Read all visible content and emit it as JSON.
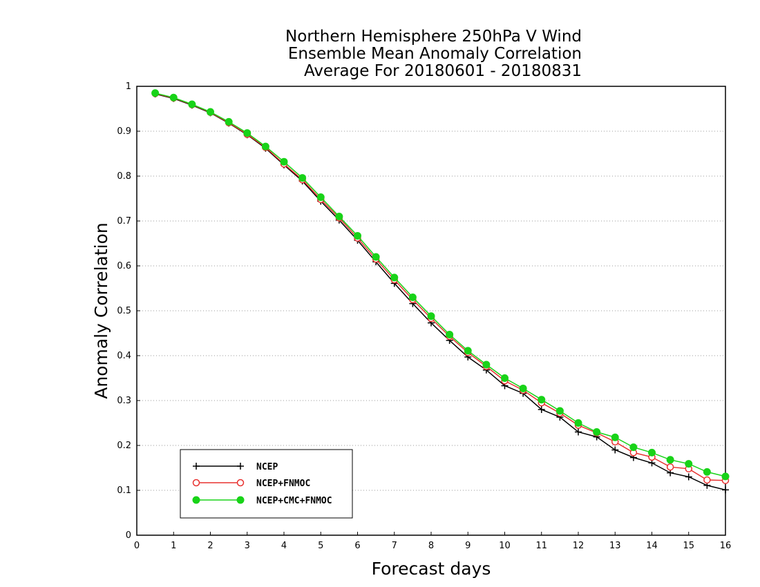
{
  "chart_data": {
    "type": "line",
    "title_lines": [
      "Northern Hemisphere 250hPa V Wind",
      "Ensemble Mean Anomaly Correlation",
      "Average For 20180601 - 20180831"
    ],
    "xlabel": "Forecast days",
    "ylabel": "Anomaly Correlation",
    "xlim": [
      0,
      16
    ],
    "ylim": [
      0,
      1
    ],
    "xticks": [
      "0",
      "1",
      "2",
      "3",
      "4",
      "5",
      "6",
      "7",
      "8",
      "9",
      "10",
      "11",
      "12",
      "13",
      "14",
      "15",
      "16"
    ],
    "yticks": [
      "0",
      "0.1",
      "0.2",
      "0.3",
      "0.4",
      "0.5",
      "0.6",
      "0.7",
      "0.8",
      "0.9",
      "1"
    ],
    "grid": "horizontal dotted",
    "legend_position": "bottom-left",
    "x": [
      0.5,
      1,
      1.5,
      2,
      2.5,
      3,
      3.5,
      4,
      4.5,
      5,
      5.5,
      6,
      6.5,
      7,
      7.5,
      8,
      8.5,
      9,
      9.5,
      10,
      10.5,
      11,
      11.5,
      12,
      12.5,
      13,
      13.5,
      14,
      14.5,
      15,
      15.5,
      16
    ],
    "series": [
      {
        "name": "NCEP",
        "color": "#000000",
        "marker": "plus",
        "values": [
          0.983,
          0.973,
          0.958,
          0.941,
          0.918,
          0.892,
          0.862,
          0.825,
          0.789,
          0.744,
          0.702,
          0.657,
          0.609,
          0.561,
          0.516,
          0.473,
          0.434,
          0.397,
          0.368,
          0.333,
          0.316,
          0.28,
          0.263,
          0.23,
          0.219,
          0.19,
          0.173,
          0.161,
          0.139,
          0.13,
          0.111,
          0.101
        ]
      },
      {
        "name": "NCEP+FNMOC",
        "color": "#e8312f",
        "marker": "open-circle",
        "values": [
          0.984,
          0.974,
          0.959,
          0.942,
          0.919,
          0.893,
          0.864,
          0.827,
          0.792,
          0.748,
          0.707,
          0.662,
          0.615,
          0.569,
          0.525,
          0.483,
          0.443,
          0.407,
          0.376,
          0.344,
          0.323,
          0.295,
          0.272,
          0.245,
          0.228,
          0.208,
          0.184,
          0.174,
          0.152,
          0.148,
          0.123,
          0.122
        ]
      },
      {
        "name": "NCEP+CMC+FNMOC",
        "color": "#18d318",
        "marker": "filled-circle",
        "values": [
          0.985,
          0.975,
          0.96,
          0.943,
          0.921,
          0.896,
          0.866,
          0.832,
          0.796,
          0.753,
          0.71,
          0.667,
          0.62,
          0.574,
          0.53,
          0.488,
          0.447,
          0.411,
          0.38,
          0.35,
          0.327,
          0.302,
          0.277,
          0.25,
          0.23,
          0.218,
          0.196,
          0.184,
          0.168,
          0.159,
          0.141,
          0.131
        ]
      }
    ]
  }
}
